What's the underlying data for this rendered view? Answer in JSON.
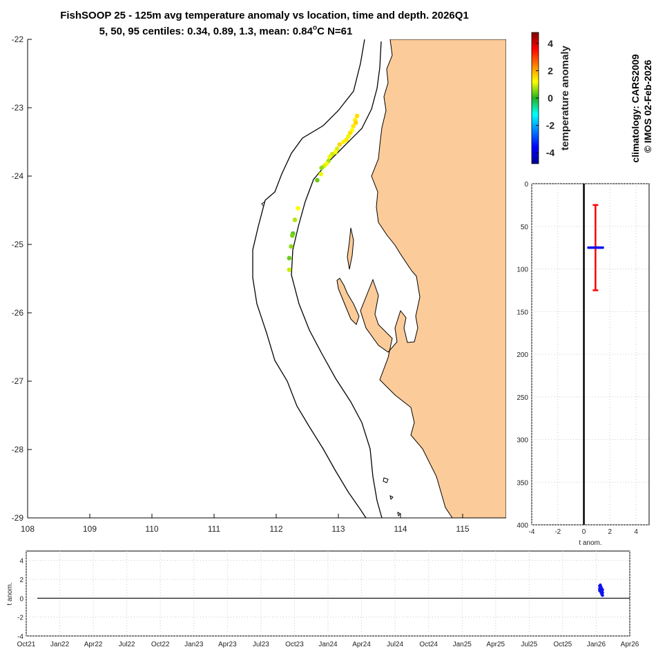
{
  "titles": {
    "line1": "FishSOOP 25 - 125m avg temperature anomaly vs location, time and depth. 2026Q1",
    "line2_prefix": "5, 50, 95 centiles: 0.34, 0.89, 1.3, mean: 0.84",
    "line2_degree": "o",
    "line2_suffix": "C N=61"
  },
  "side_notes": {
    "climatology": "climatology: CARS2009",
    "copyright": "© IMOS 02-Feb-2026"
  },
  "colors": {
    "land": "#fbcb99",
    "coast": "#000000",
    "depth_range": "#ff0000",
    "points_blue": "#1010ee",
    "zero_line": "#000000"
  },
  "chart_data": [
    {
      "type": "scatter",
      "name": "map",
      "xlim": [
        108,
        115.7
      ],
      "ylim": [
        -29,
        -22
      ],
      "xticks": [
        "108",
        "109",
        "110",
        "111",
        "112",
        "113",
        "114",
        "115"
      ],
      "yticks": [
        "-22",
        "-23",
        "-24",
        "-25",
        "-26",
        "-27",
        "-28",
        "-29"
      ],
      "points": [
        {
          "lon": 113.3,
          "lat": -23.12,
          "t": 1.5
        },
        {
          "lon": 113.27,
          "lat": -23.18,
          "t": 1.3
        },
        {
          "lon": 113.28,
          "lat": -23.22,
          "t": 1.6
        },
        {
          "lon": 113.24,
          "lat": -23.27,
          "t": 1.4
        },
        {
          "lon": 113.22,
          "lat": -23.33,
          "t": 1.2
        },
        {
          "lon": 113.19,
          "lat": -23.37,
          "t": 1.5
        },
        {
          "lon": 113.16,
          "lat": -23.42,
          "t": 1.1
        },
        {
          "lon": 113.13,
          "lat": -23.47,
          "t": 1.4
        },
        {
          "lon": 113.08,
          "lat": -23.5,
          "t": 1.3
        },
        {
          "lon": 113.02,
          "lat": -23.54,
          "t": 1.6
        },
        {
          "lon": 112.98,
          "lat": -23.6,
          "t": 1.0
        },
        {
          "lon": 112.95,
          "lat": -23.65,
          "t": 1.2
        },
        {
          "lon": 112.9,
          "lat": -23.68,
          "t": 0.9
        },
        {
          "lon": 112.86,
          "lat": -23.72,
          "t": 1.1
        },
        {
          "lon": 112.84,
          "lat": -23.78,
          "t": 0.7
        },
        {
          "lon": 112.81,
          "lat": -23.82,
          "t": 1.3
        },
        {
          "lon": 112.77,
          "lat": -23.85,
          "t": 1.0
        },
        {
          "lon": 112.73,
          "lat": -23.88,
          "t": 0.6
        },
        {
          "lon": 112.72,
          "lat": -23.97,
          "t": 1.1
        },
        {
          "lon": 112.66,
          "lat": -24.06,
          "t": 0.4
        },
        {
          "lon": 112.35,
          "lat": -24.47,
          "t": 1.2
        },
        {
          "lon": 112.3,
          "lat": -24.64,
          "t": 0.8
        },
        {
          "lon": 112.27,
          "lat": -24.84,
          "t": 0.3
        },
        {
          "lon": 112.26,
          "lat": -24.87,
          "t": 0.5
        },
        {
          "lon": 112.24,
          "lat": -25.03,
          "t": 0.6
        },
        {
          "lon": 112.21,
          "lat": -25.2,
          "t": 0.4
        },
        {
          "lon": 112.21,
          "lat": -25.37,
          "t": 0.9
        }
      ]
    },
    {
      "type": "colorbar",
      "name": "colorbar",
      "clim": [
        -4.8,
        4.8
      ],
      "ticks": [
        "4",
        "2",
        "0",
        "-2",
        "-4"
      ],
      "tick_values": [
        4,
        2,
        0,
        -2,
        -4
      ],
      "label": "temperature anomaly"
    },
    {
      "type": "scatter",
      "name": "depth-profile",
      "xlim": [
        -4,
        5
      ],
      "ylim": [
        0,
        400
      ],
      "y_reversed": true,
      "grid": true,
      "xlabel": "t anom.",
      "xticks": [
        "-4",
        "-2",
        "0",
        "2",
        "4"
      ],
      "xtick_values": [
        -4,
        -2,
        0,
        2,
        4
      ],
      "yticks": [
        "0",
        "50",
        "100",
        "150",
        "200",
        "250",
        "300",
        "350",
        "400"
      ],
      "ytick_values": [
        0,
        50,
        100,
        150,
        200,
        250,
        300,
        350,
        400
      ],
      "depth_range": {
        "x": 0.89,
        "top": 25,
        "bottom": 125
      },
      "anomaly_depth": 75,
      "anomaly_values": [
        0.35,
        0.45,
        0.55,
        0.6,
        0.7,
        0.75,
        0.8,
        0.85,
        0.88,
        0.9,
        0.95,
        1.0,
        1.05,
        1.1,
        1.15,
        1.2,
        1.3,
        1.35,
        1.45
      ]
    },
    {
      "type": "scatter",
      "name": "time-series",
      "ylim": [
        -4,
        5
      ],
      "grid": true,
      "ylabel": "t anom.",
      "yticks": [
        "4",
        "2",
        "0",
        "-2",
        "-4"
      ],
      "ytick_values": [
        4,
        2,
        0,
        -2,
        -4
      ],
      "xticks": [
        "Oct21",
        "Jan22",
        "Apr22",
        "Jul22",
        "Oct22",
        "Jan23",
        "Apr23",
        "Jul23",
        "Oct23",
        "Jan24",
        "Apr24",
        "Jul24",
        "Oct24",
        "Jan25",
        "Apr25",
        "Jul25",
        "Oct25",
        "Jan26",
        "Apr26"
      ],
      "points": [
        {
          "date": "2026-01-10",
          "t": 1.3
        },
        {
          "date": "2026-01-10",
          "t": 1.0
        },
        {
          "date": "2026-01-10",
          "t": 0.8
        },
        {
          "date": "2026-01-12",
          "t": 1.4
        },
        {
          "date": "2026-01-12",
          "t": 1.1
        },
        {
          "date": "2026-01-12",
          "t": 0.9
        },
        {
          "date": "2026-01-14",
          "t": 1.2
        },
        {
          "date": "2026-01-14",
          "t": 0.9
        },
        {
          "date": "2026-01-14",
          "t": 0.6
        },
        {
          "date": "2026-01-16",
          "t": 1.0
        },
        {
          "date": "2026-01-16",
          "t": 0.7
        },
        {
          "date": "2026-01-16",
          "t": 0.4
        },
        {
          "date": "2026-01-18",
          "t": 0.9
        },
        {
          "date": "2026-01-18",
          "t": 0.6
        },
        {
          "date": "2026-01-18",
          "t": 0.3
        }
      ]
    }
  ]
}
